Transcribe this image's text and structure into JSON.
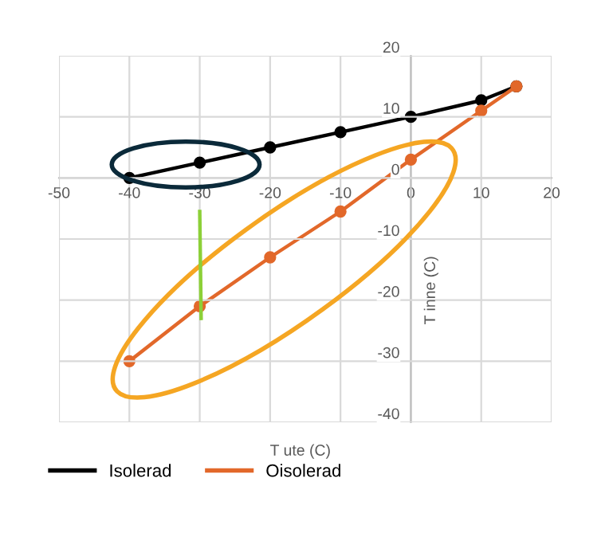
{
  "chart_data": {
    "type": "line",
    "xlabel": "T ute (C)",
    "ylabel": "T inne (C)",
    "x": [
      -40,
      -30,
      -20,
      -10,
      0,
      10,
      15
    ],
    "series": [
      {
        "name": "Isolerad",
        "color": "#000000",
        "values": [
          0,
          2.5,
          5,
          7.5,
          10,
          12.7,
          15
        ]
      },
      {
        "name": "Oisolerad",
        "color": "#e2682a",
        "values": [
          -30,
          -21,
          -13,
          -5.5,
          3,
          11,
          15
        ]
      }
    ],
    "xlim": [
      -50,
      20
    ],
    "xticks": [
      -50,
      -40,
      -30,
      -20,
      -10,
      0,
      10,
      20
    ],
    "ylim": [
      -40,
      20
    ],
    "yticks": [
      -40,
      -30,
      -20,
      -10,
      0,
      10,
      20
    ],
    "grid": true,
    "legend": "bottom left",
    "marker": "circle",
    "line_style": "solid"
  }
}
